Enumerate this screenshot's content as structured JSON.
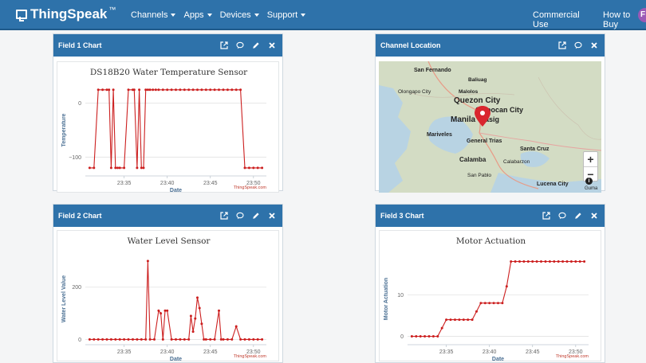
{
  "navbar": {
    "brand": "ThingSpeak",
    "brand_tm": "™",
    "menu": [
      {
        "label": "Channels"
      },
      {
        "label": "Apps"
      },
      {
        "label": "Devices"
      },
      {
        "label": "Support"
      }
    ],
    "right_links": [
      {
        "label": "Commercial Use"
      },
      {
        "label": "How to Buy"
      }
    ],
    "user_initial": "F"
  },
  "panels": {
    "field1": {
      "title": "Field 1 Chart"
    },
    "location": {
      "title": "Channel Location"
    },
    "field2": {
      "title": "Field 2 Chart"
    },
    "field3": {
      "title": "Field 3 Chart"
    }
  },
  "icons": [
    "external-link-icon",
    "comment-icon",
    "pencil-icon",
    "close-icon"
  ],
  "map": {
    "labels": [
      "San Fernando",
      "Baliuag",
      "Olongapo City",
      "Malolos",
      "Quezon City",
      "Caloocan City",
      "Manila",
      "Pasig",
      "Mariveles",
      "General Trias",
      "Santa Cruz",
      "Calamba",
      "Calabarzon",
      "San Pablo",
      "Lucena City"
    ],
    "zoom_in": "+",
    "zoom_out": "−",
    "info": "i",
    "attribution": "Guma",
    "marker_color": "#d9262e"
  },
  "chart_data": [
    {
      "type": "line",
      "title": "DS18B20 Water Temperature Sensor",
      "xlabel": "Date",
      "ylabel": "Temperature",
      "x_ticks": [
        "23:35",
        "23:40",
        "23:45",
        "23:50"
      ],
      "y_ticks": [
        0,
        -100
      ],
      "ylim": [
        -135,
        35
      ],
      "color": "#cc1f1f",
      "credit": "ThingSpeak.com",
      "series": [
        {
          "x": [
            "23:31:00",
            "23:31:30",
            "23:32:00",
            "23:32:30",
            "23:33:00",
            "23:33:15",
            "23:33:30",
            "23:33:45",
            "23:34:00",
            "23:34:15",
            "23:34:30",
            "23:35:00",
            "23:35:30",
            "23:36:00",
            "23:36:10",
            "23:36:30",
            "23:36:45",
            "23:37:00",
            "23:37:15",
            "23:37:30",
            "23:37:45",
            "23:38:00",
            "23:38:20",
            "23:38:40",
            "23:39:00",
            "23:39:30",
            "23:40:00",
            "23:40:30",
            "23:41:00",
            "23:41:30",
            "23:42:00",
            "23:42:30",
            "23:43:00",
            "23:43:30",
            "23:44:00",
            "23:44:30",
            "23:45:00",
            "23:45:30",
            "23:46:00",
            "23:46:30",
            "23:47:00",
            "23:47:30",
            "23:48:00",
            "23:48:30",
            "23:49:00",
            "23:49:30",
            "23:50:00",
            "23:50:30",
            "23:51:00"
          ],
          "y": [
            -120,
            -120,
            25,
            25,
            25,
            25,
            -120,
            25,
            -120,
            -120,
            -120,
            -120,
            25,
            25,
            25,
            -120,
            25,
            -120,
            -120,
            25,
            25,
            25,
            25,
            25,
            25,
            25,
            25,
            25,
            25,
            25,
            25,
            25,
            25,
            25,
            25,
            25,
            25,
            25,
            25,
            25,
            25,
            25,
            25,
            25,
            -120,
            -120,
            -120,
            -120,
            -120
          ]
        }
      ]
    },
    {
      "type": "line",
      "title": "Water Level Sensor",
      "xlabel": "Date",
      "ylabel": "Water Level Value",
      "x_ticks": [
        "23:35",
        "23:40",
        "23:45",
        "23:50"
      ],
      "y_ticks": [
        0,
        200
      ],
      "ylim": [
        -20,
        330
      ],
      "color": "#cc1f1f",
      "credit": "ThingSpeak.com",
      "series": [
        {
          "x": [
            "23:31:00",
            "23:31:30",
            "23:32:00",
            "23:32:30",
            "23:33:00",
            "23:33:30",
            "23:34:00",
            "23:34:30",
            "23:35:00",
            "23:35:30",
            "23:36:00",
            "23:36:30",
            "23:37:00",
            "23:37:30",
            "23:37:45",
            "23:38:00",
            "23:38:30",
            "23:39:00",
            "23:39:15",
            "23:39:30",
            "23:39:45",
            "23:40:00",
            "23:40:30",
            "23:41:00",
            "23:41:30",
            "23:42:00",
            "23:42:30",
            "23:42:45",
            "23:43:00",
            "23:43:15",
            "23:43:30",
            "23:43:45",
            "23:44:00",
            "23:44:15",
            "23:44:30",
            "23:45:00",
            "23:45:30",
            "23:46:00",
            "23:46:15",
            "23:46:30",
            "23:47:00",
            "23:47:30",
            "23:48:00",
            "23:48:30",
            "23:49:00",
            "23:49:30",
            "23:50:00",
            "23:50:30",
            "23:51:00"
          ],
          "y": [
            0,
            0,
            0,
            0,
            0,
            0,
            0,
            0,
            0,
            0,
            0,
            0,
            0,
            0,
            300,
            0,
            0,
            110,
            100,
            0,
            110,
            110,
            0,
            0,
            0,
            0,
            0,
            90,
            30,
            80,
            160,
            120,
            60,
            0,
            0,
            0,
            0,
            110,
            0,
            0,
            0,
            0,
            50,
            0,
            0,
            0,
            0,
            0,
            0
          ]
        }
      ]
    },
    {
      "type": "line",
      "title": "Motor Actuation",
      "xlabel": "Date",
      "ylabel": "Motor Actuation",
      "x_ticks": [
        "23:35",
        "23:40",
        "23:45",
        "23:50"
      ],
      "y_ticks": [
        0,
        10
      ],
      "ylim": [
        -2,
        20
      ],
      "color": "#cc1f1f",
      "credit": "ThingSpeak.com",
      "series": [
        {
          "x": [
            "23:31:00",
            "23:31:30",
            "23:32:00",
            "23:32:30",
            "23:33:00",
            "23:33:30",
            "23:34:00",
            "23:34:30",
            "23:35:00",
            "23:35:30",
            "23:36:00",
            "23:36:30",
            "23:37:00",
            "23:37:30",
            "23:38:00",
            "23:38:30",
            "23:39:00",
            "23:39:30",
            "23:40:00",
            "23:40:30",
            "23:41:00",
            "23:41:30",
            "23:42:00",
            "23:42:30",
            "23:43:00",
            "23:43:30",
            "23:44:00",
            "23:44:30",
            "23:45:00",
            "23:45:30",
            "23:46:00",
            "23:46:30",
            "23:47:00",
            "23:47:30",
            "23:48:00",
            "23:48:30",
            "23:49:00",
            "23:49:30",
            "23:50:00",
            "23:50:30",
            "23:51:00"
          ],
          "y": [
            0,
            0,
            0,
            0,
            0,
            0,
            0,
            2,
            4,
            4,
            4,
            4,
            4,
            4,
            4,
            6,
            8,
            8,
            8,
            8,
            8,
            8,
            12,
            18,
            18,
            18,
            18,
            18,
            18,
            18,
            18,
            18,
            18,
            18,
            18,
            18,
            18,
            18,
            18,
            18,
            18
          ]
        }
      ]
    }
  ]
}
